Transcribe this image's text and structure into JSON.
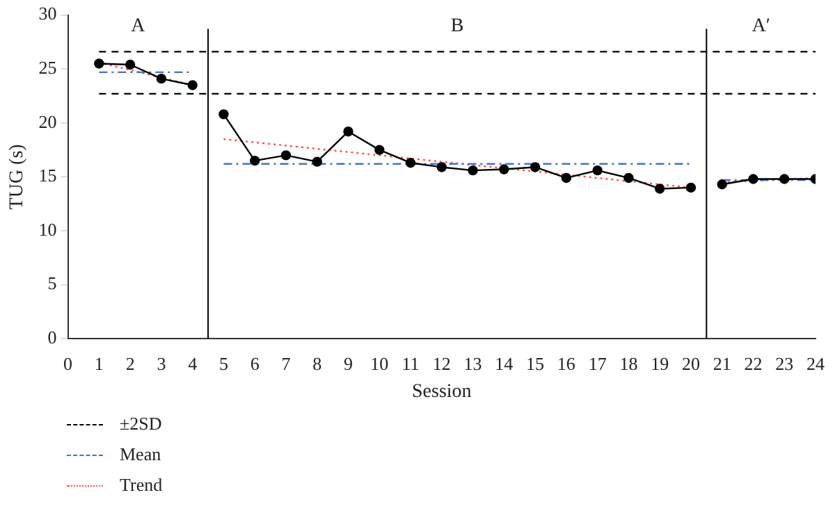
{
  "chart_data": {
    "type": "line",
    "xlabel": "Session",
    "ylabel": "TUG (s)",
    "xlim": [
      0,
      24
    ],
    "xticks": [
      0,
      1,
      2,
      3,
      4,
      5,
      6,
      7,
      8,
      9,
      10,
      11,
      12,
      13,
      14,
      15,
      16,
      17,
      18,
      19,
      20,
      21,
      22,
      23,
      24
    ],
    "ylim": [
      0,
      30
    ],
    "yticks": [
      0,
      5,
      10,
      15,
      20,
      25,
      30
    ],
    "grid": false,
    "legend": "bottom left",
    "series": [
      {
        "name": "±2SD",
        "color": "#000000",
        "x": [
          1,
          24
        ],
        "values": [
          26.6,
          26.6
        ],
        "line_style": "dashed",
        "marker": "none"
      },
      {
        "color": "#000000",
        "x": [
          1,
          24
        ],
        "values": [
          22.7,
          22.7
        ],
        "line_style": "dashed",
        "marker": "none"
      },
      {
        "name": "Mean",
        "color": "#4472c4",
        "x": [
          1,
          4
        ],
        "values": [
          24.7,
          24.7
        ],
        "line_style": "dashdot",
        "marker": "none"
      },
      {
        "color": "#4472c4",
        "x": [
          5,
          20
        ],
        "values": [
          16.2,
          16.2
        ],
        "line_style": "dashdot",
        "marker": "none"
      },
      {
        "color": "#4472c4",
        "x": [
          21,
          24
        ],
        "values": [
          14.7,
          14.7
        ],
        "line_style": "dashdot",
        "marker": "none"
      },
      {
        "name": "Trend",
        "color": "#ff4d4d",
        "x": [
          1,
          4
        ],
        "values": [
          25.6,
          23.5
        ],
        "line_style": "dotted",
        "marker": "none"
      },
      {
        "color": "#ff4d4d",
        "x": [
          5,
          20
        ],
        "values": [
          18.5,
          14.0
        ],
        "line_style": "dotted",
        "marker": "none"
      },
      {
        "color": "#ff4d4d",
        "x": [
          21,
          24
        ],
        "values": [
          14.5,
          14.9
        ],
        "line_style": "dotted",
        "marker": "none"
      },
      {
        "color": "#000000",
        "x": [
          1,
          2,
          3,
          4
        ],
        "values": [
          25.5,
          25.4,
          24.1,
          23.5
        ],
        "line_style": "solid",
        "marker": "circle"
      },
      {
        "color": "#000000",
        "x": [
          5,
          6,
          7,
          8,
          9,
          10,
          11,
          12,
          13,
          14,
          15,
          16,
          17,
          18,
          19,
          20
        ],
        "values": [
          20.8,
          16.5,
          17.0,
          16.4,
          19.2,
          17.5,
          16.3,
          15.9,
          15.6,
          15.7,
          15.9,
          14.9,
          15.6,
          14.9,
          13.9,
          14.0
        ],
        "line_style": "solid",
        "marker": "circle"
      },
      {
        "color": "#000000",
        "x": [
          21,
          22,
          23,
          24
        ],
        "values": [
          14.3,
          14.8,
          14.8,
          14.8
        ],
        "line_style": "solid",
        "marker": "circle"
      }
    ],
    "ref_lines": [
      {
        "axis": "x",
        "value": 4.5,
        "color": "#000000",
        "line_style": "solid"
      },
      {
        "axis": "x",
        "value": 20.5,
        "color": "#000000",
        "line_style": "solid"
      }
    ],
    "annotations": [
      "A",
      "B",
      "A′"
    ]
  }
}
